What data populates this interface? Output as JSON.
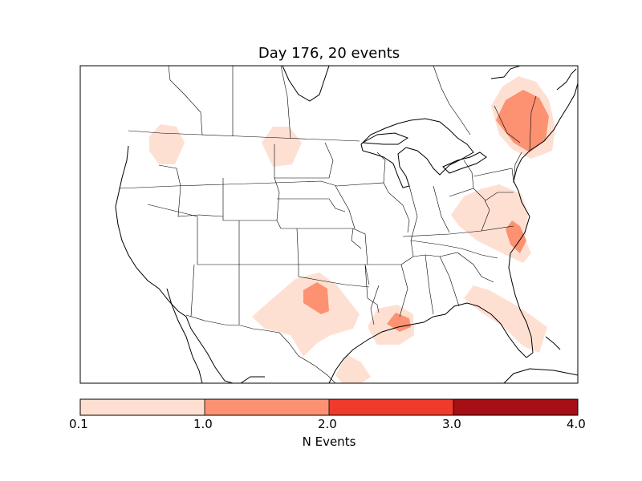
{
  "title": "Day 176, 20 events",
  "colorbar": {
    "label": "N Events",
    "ticks": [
      "0.1",
      "1.0",
      "2.0",
      "3.0",
      "4.0"
    ],
    "colors": [
      "#fee0d2",
      "#fc9272",
      "#ef3b2c",
      "#a50f15"
    ]
  },
  "map": {
    "region": "North America (CONUS)",
    "features": [
      "coastlines",
      "country borders",
      "state borders"
    ]
  },
  "chart_data": {
    "type": "heatmap",
    "title": "Day 176, 20 events",
    "colorbar_label": "N Events",
    "levels": [
      0.1,
      1.0,
      2.0,
      3.0,
      4.0
    ],
    "hotspots": [
      {
        "region": "Washington",
        "level": 0.1
      },
      {
        "region": "North Dakota / Saskatchewan",
        "level": 0.1
      },
      {
        "region": "Northern Texas / Oklahoma",
        "level": 1.0
      },
      {
        "region": "Louisiana",
        "level": 1.0
      },
      {
        "region": "South Texas coast",
        "level": 0.1
      },
      {
        "region": "Florida",
        "level": 0.1
      },
      {
        "region": "Virginia / North Carolina",
        "level": 1.0
      },
      {
        "region": "New England",
        "level": 1.0
      }
    ]
  }
}
